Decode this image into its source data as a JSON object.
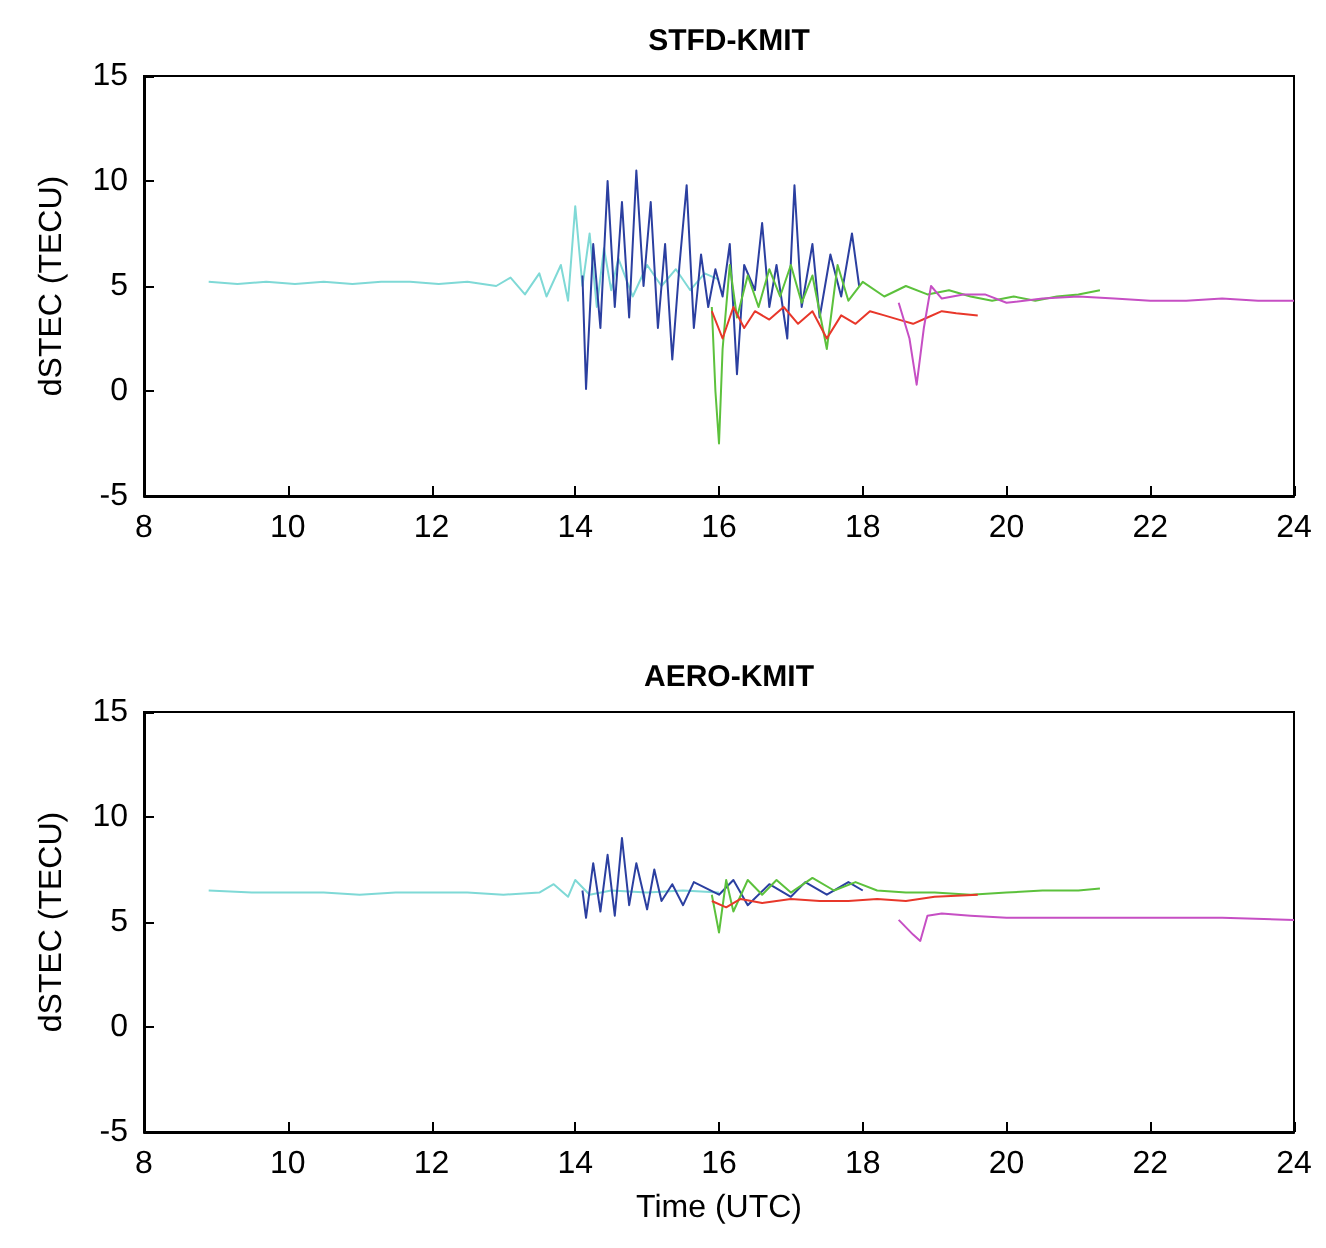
{
  "chart_data": [
    {
      "type": "line",
      "title": "STFD-KMIT",
      "ylabel": "dSTEC (TECU)",
      "xlim": [
        8,
        24
      ],
      "xticks": [
        8,
        10,
        12,
        14,
        16,
        18,
        20,
        22,
        24
      ],
      "ylim": [
        -5,
        15
      ],
      "yticks": [
        -5,
        0,
        5,
        10,
        15
      ],
      "grid": false,
      "marker": "none",
      "line_style": "solid",
      "series": [
        {
          "color": "#7fd9d6",
          "x": [
            8.9,
            9.3,
            9.7,
            10.1,
            10.5,
            10.9,
            11.3,
            11.7,
            12.1,
            12.5,
            12.9,
            13.1,
            13.3,
            13.5,
            13.6,
            13.8,
            13.9,
            14.0,
            14.1,
            14.2,
            14.3,
            14.4,
            14.5,
            14.6,
            14.8,
            15.0,
            15.2,
            15.4,
            15.6,
            15.8,
            16.0
          ],
          "values": [
            5.2,
            5.1,
            5.2,
            5.1,
            5.2,
            5.1,
            5.2,
            5.2,
            5.1,
            5.2,
            5.0,
            5.4,
            4.6,
            5.6,
            4.5,
            6.0,
            4.3,
            8.8,
            5.0,
            7.5,
            4.0,
            6.8,
            4.8,
            6.3,
            4.5,
            6.0,
            5.0,
            5.8,
            4.8,
            5.6,
            5.3
          ]
        },
        {
          "color": "#2b3fa0",
          "x": [
            14.1,
            14.15,
            14.25,
            14.35,
            14.45,
            14.55,
            14.65,
            14.75,
            14.85,
            14.95,
            15.05,
            15.15,
            15.25,
            15.35,
            15.45,
            15.55,
            15.65,
            15.75,
            15.85,
            15.95,
            16.05,
            16.15,
            16.25,
            16.35,
            16.5,
            16.6,
            16.7,
            16.8,
            16.95,
            17.05,
            17.15,
            17.3,
            17.4,
            17.55,
            17.7,
            17.85,
            17.95
          ],
          "values": [
            5.5,
            0.1,
            7,
            3,
            10,
            4,
            9,
            3.5,
            10.5,
            5,
            9,
            3,
            7,
            1.5,
            6,
            9.8,
            3,
            6.5,
            4,
            5.8,
            4.5,
            7,
            0.8,
            6,
            4.8,
            8,
            4,
            6,
            2.5,
            9.8,
            4,
            7,
            3.5,
            6.5,
            4.5,
            7.5,
            5
          ]
        },
        {
          "color": "#5cc13c",
          "x": [
            15.9,
            15.95,
            16.0,
            16.05,
            16.15,
            16.25,
            16.4,
            16.55,
            16.7,
            16.85,
            17.0,
            17.15,
            17.3,
            17.5,
            17.65,
            17.8,
            18.0,
            18.3,
            18.6,
            18.9,
            19.2,
            19.5,
            19.8,
            20.1,
            20.4,
            20.7,
            21.0,
            21.3
          ],
          "values": [
            4,
            0,
            -2.5,
            2,
            6,
            3.5,
            5.5,
            4,
            5.8,
            4.5,
            6,
            4.2,
            5.5,
            2,
            6,
            4.3,
            5.2,
            4.5,
            5,
            4.6,
            4.8,
            4.5,
            4.3,
            4.5,
            4.3,
            4.5,
            4.6,
            4.8
          ]
        },
        {
          "color": "#e8372a",
          "x": [
            15.9,
            16.05,
            16.2,
            16.35,
            16.5,
            16.7,
            16.9,
            17.1,
            17.3,
            17.5,
            17.7,
            17.9,
            18.1,
            18.3,
            18.5,
            18.7,
            18.9,
            19.1,
            19.3,
            19.6
          ],
          "values": [
            3.8,
            2.5,
            4,
            3,
            3.8,
            3.4,
            4,
            3.2,
            3.8,
            2.5,
            3.6,
            3.2,
            3.8,
            3.6,
            3.4,
            3.2,
            3.5,
            3.8,
            3.7,
            3.6
          ]
        },
        {
          "color": "#c64fc4",
          "x": [
            18.5,
            18.65,
            18.75,
            18.85,
            18.95,
            19.1,
            19.4,
            19.7,
            20,
            20.5,
            21,
            21.5,
            22,
            22.5,
            23,
            23.5,
            24
          ],
          "values": [
            4.2,
            2.5,
            0.3,
            3,
            5,
            4.4,
            4.6,
            4.6,
            4.2,
            4.4,
            4.5,
            4.4,
            4.3,
            4.3,
            4.4,
            4.3,
            4.3
          ]
        }
      ]
    },
    {
      "type": "line",
      "title": "AERO-KMIT",
      "xlabel": "Time (UTC)",
      "ylabel": "dSTEC (TECU)",
      "xlim": [
        8,
        24
      ],
      "xticks": [
        8,
        10,
        12,
        14,
        16,
        18,
        20,
        22,
        24
      ],
      "ylim": [
        -5,
        15
      ],
      "yticks": [
        -5,
        0,
        5,
        10,
        15
      ],
      "grid": false,
      "marker": "none",
      "line_style": "solid",
      "series": [
        {
          "color": "#7fd9d6",
          "x": [
            8.9,
            9.5,
            10,
            10.5,
            11,
            11.5,
            12,
            12.5,
            13,
            13.5,
            13.7,
            13.9,
            14.0,
            14.2,
            14.5,
            15,
            15.5,
            16
          ],
          "values": [
            6.5,
            6.4,
            6.4,
            6.4,
            6.3,
            6.4,
            6.4,
            6.4,
            6.3,
            6.4,
            6.8,
            6.2,
            7.0,
            6.3,
            6.5,
            6.4,
            6.5,
            6.4
          ]
        },
        {
          "color": "#2b3fa0",
          "x": [
            14.1,
            14.15,
            14.25,
            14.35,
            14.45,
            14.55,
            14.65,
            14.75,
            14.85,
            15.0,
            15.1,
            15.2,
            15.35,
            15.5,
            15.65,
            16,
            16.2,
            16.4,
            16.7,
            17,
            17.2,
            17.5,
            17.8,
            18
          ],
          "values": [
            6.5,
            5.2,
            7.8,
            5.5,
            8.2,
            5.3,
            9.0,
            5.8,
            7.8,
            5.6,
            7.5,
            6,
            6.8,
            5.8,
            6.9,
            6.3,
            7,
            5.8,
            6.8,
            6.2,
            6.9,
            6.3,
            6.9,
            6.5
          ]
        },
        {
          "color": "#5cc13c",
          "x": [
            15.9,
            16,
            16.1,
            16.2,
            16.4,
            16.6,
            16.8,
            17,
            17.3,
            17.6,
            17.9,
            18.2,
            18.6,
            19,
            19.5,
            20,
            20.5,
            21,
            21.3
          ],
          "values": [
            6.3,
            4.5,
            7,
            5.5,
            7,
            6.3,
            7,
            6.4,
            7.1,
            6.5,
            6.9,
            6.5,
            6.4,
            6.4,
            6.3,
            6.4,
            6.5,
            6.5,
            6.6
          ]
        },
        {
          "color": "#e8372a",
          "x": [
            15.9,
            16.1,
            16.3,
            16.6,
            17,
            17.4,
            17.8,
            18.2,
            18.6,
            19,
            19.6
          ],
          "values": [
            6,
            5.7,
            6.1,
            5.9,
            6.1,
            6,
            6,
            6.1,
            6,
            6.2,
            6.3
          ]
        },
        {
          "color": "#c64fc4",
          "x": [
            18.5,
            18.7,
            18.8,
            18.9,
            19.1,
            19.5,
            20,
            21,
            22,
            23,
            24
          ],
          "values": [
            5.1,
            4.4,
            4.1,
            5.3,
            5.4,
            5.3,
            5.2,
            5.2,
            5.2,
            5.2,
            5.1
          ]
        }
      ]
    }
  ]
}
